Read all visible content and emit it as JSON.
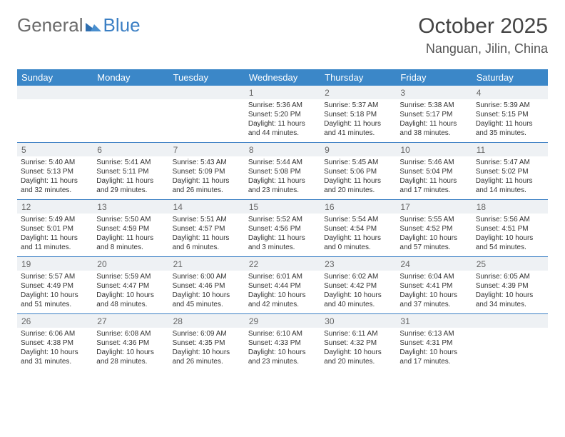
{
  "logo": {
    "part1": "General",
    "part2": "Blue",
    "tri_color": "#2f6fb0"
  },
  "title": "October 2025",
  "location": "Nanguan, Jilin, China",
  "colors": {
    "header_bar": "#3b87c8",
    "num_row_bg": "#eef1f4",
    "divider": "#3b7fc4",
    "text": "#333333"
  },
  "daysOfWeek": [
    "Sunday",
    "Monday",
    "Tuesday",
    "Wednesday",
    "Thursday",
    "Friday",
    "Saturday"
  ],
  "weeks": [
    [
      {
        "n": "",
        "sr": "",
        "ss": "",
        "dl": ""
      },
      {
        "n": "",
        "sr": "",
        "ss": "",
        "dl": ""
      },
      {
        "n": "",
        "sr": "",
        "ss": "",
        "dl": ""
      },
      {
        "n": "1",
        "sr": "Sunrise: 5:36 AM",
        "ss": "Sunset: 5:20 PM",
        "dl": "Daylight: 11 hours and 44 minutes."
      },
      {
        "n": "2",
        "sr": "Sunrise: 5:37 AM",
        "ss": "Sunset: 5:18 PM",
        "dl": "Daylight: 11 hours and 41 minutes."
      },
      {
        "n": "3",
        "sr": "Sunrise: 5:38 AM",
        "ss": "Sunset: 5:17 PM",
        "dl": "Daylight: 11 hours and 38 minutes."
      },
      {
        "n": "4",
        "sr": "Sunrise: 5:39 AM",
        "ss": "Sunset: 5:15 PM",
        "dl": "Daylight: 11 hours and 35 minutes."
      }
    ],
    [
      {
        "n": "5",
        "sr": "Sunrise: 5:40 AM",
        "ss": "Sunset: 5:13 PM",
        "dl": "Daylight: 11 hours and 32 minutes."
      },
      {
        "n": "6",
        "sr": "Sunrise: 5:41 AM",
        "ss": "Sunset: 5:11 PM",
        "dl": "Daylight: 11 hours and 29 minutes."
      },
      {
        "n": "7",
        "sr": "Sunrise: 5:43 AM",
        "ss": "Sunset: 5:09 PM",
        "dl": "Daylight: 11 hours and 26 minutes."
      },
      {
        "n": "8",
        "sr": "Sunrise: 5:44 AM",
        "ss": "Sunset: 5:08 PM",
        "dl": "Daylight: 11 hours and 23 minutes."
      },
      {
        "n": "9",
        "sr": "Sunrise: 5:45 AM",
        "ss": "Sunset: 5:06 PM",
        "dl": "Daylight: 11 hours and 20 minutes."
      },
      {
        "n": "10",
        "sr": "Sunrise: 5:46 AM",
        "ss": "Sunset: 5:04 PM",
        "dl": "Daylight: 11 hours and 17 minutes."
      },
      {
        "n": "11",
        "sr": "Sunrise: 5:47 AM",
        "ss": "Sunset: 5:02 PM",
        "dl": "Daylight: 11 hours and 14 minutes."
      }
    ],
    [
      {
        "n": "12",
        "sr": "Sunrise: 5:49 AM",
        "ss": "Sunset: 5:01 PM",
        "dl": "Daylight: 11 hours and 11 minutes."
      },
      {
        "n": "13",
        "sr": "Sunrise: 5:50 AM",
        "ss": "Sunset: 4:59 PM",
        "dl": "Daylight: 11 hours and 8 minutes."
      },
      {
        "n": "14",
        "sr": "Sunrise: 5:51 AM",
        "ss": "Sunset: 4:57 PM",
        "dl": "Daylight: 11 hours and 6 minutes."
      },
      {
        "n": "15",
        "sr": "Sunrise: 5:52 AM",
        "ss": "Sunset: 4:56 PM",
        "dl": "Daylight: 11 hours and 3 minutes."
      },
      {
        "n": "16",
        "sr": "Sunrise: 5:54 AM",
        "ss": "Sunset: 4:54 PM",
        "dl": "Daylight: 11 hours and 0 minutes."
      },
      {
        "n": "17",
        "sr": "Sunrise: 5:55 AM",
        "ss": "Sunset: 4:52 PM",
        "dl": "Daylight: 10 hours and 57 minutes."
      },
      {
        "n": "18",
        "sr": "Sunrise: 5:56 AM",
        "ss": "Sunset: 4:51 PM",
        "dl": "Daylight: 10 hours and 54 minutes."
      }
    ],
    [
      {
        "n": "19",
        "sr": "Sunrise: 5:57 AM",
        "ss": "Sunset: 4:49 PM",
        "dl": "Daylight: 10 hours and 51 minutes."
      },
      {
        "n": "20",
        "sr": "Sunrise: 5:59 AM",
        "ss": "Sunset: 4:47 PM",
        "dl": "Daylight: 10 hours and 48 minutes."
      },
      {
        "n": "21",
        "sr": "Sunrise: 6:00 AM",
        "ss": "Sunset: 4:46 PM",
        "dl": "Daylight: 10 hours and 45 minutes."
      },
      {
        "n": "22",
        "sr": "Sunrise: 6:01 AM",
        "ss": "Sunset: 4:44 PM",
        "dl": "Daylight: 10 hours and 42 minutes."
      },
      {
        "n": "23",
        "sr": "Sunrise: 6:02 AM",
        "ss": "Sunset: 4:42 PM",
        "dl": "Daylight: 10 hours and 40 minutes."
      },
      {
        "n": "24",
        "sr": "Sunrise: 6:04 AM",
        "ss": "Sunset: 4:41 PM",
        "dl": "Daylight: 10 hours and 37 minutes."
      },
      {
        "n": "25",
        "sr": "Sunrise: 6:05 AM",
        "ss": "Sunset: 4:39 PM",
        "dl": "Daylight: 10 hours and 34 minutes."
      }
    ],
    [
      {
        "n": "26",
        "sr": "Sunrise: 6:06 AM",
        "ss": "Sunset: 4:38 PM",
        "dl": "Daylight: 10 hours and 31 minutes."
      },
      {
        "n": "27",
        "sr": "Sunrise: 6:08 AM",
        "ss": "Sunset: 4:36 PM",
        "dl": "Daylight: 10 hours and 28 minutes."
      },
      {
        "n": "28",
        "sr": "Sunrise: 6:09 AM",
        "ss": "Sunset: 4:35 PM",
        "dl": "Daylight: 10 hours and 26 minutes."
      },
      {
        "n": "29",
        "sr": "Sunrise: 6:10 AM",
        "ss": "Sunset: 4:33 PM",
        "dl": "Daylight: 10 hours and 23 minutes."
      },
      {
        "n": "30",
        "sr": "Sunrise: 6:11 AM",
        "ss": "Sunset: 4:32 PM",
        "dl": "Daylight: 10 hours and 20 minutes."
      },
      {
        "n": "31",
        "sr": "Sunrise: 6:13 AM",
        "ss": "Sunset: 4:31 PM",
        "dl": "Daylight: 10 hours and 17 minutes."
      },
      {
        "n": "",
        "sr": "",
        "ss": "",
        "dl": ""
      }
    ]
  ]
}
